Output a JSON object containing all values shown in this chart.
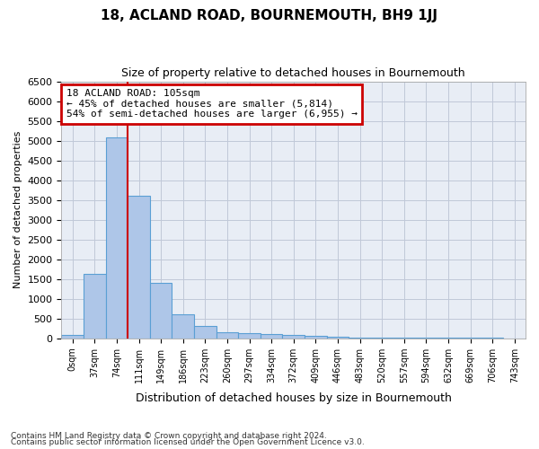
{
  "title": "18, ACLAND ROAD, BOURNEMOUTH, BH9 1JJ",
  "subtitle": "Size of property relative to detached houses in Bournemouth",
  "xlabel": "Distribution of detached houses by size in Bournemouth",
  "ylabel": "Number of detached properties",
  "bin_labels": [
    "0sqm",
    "37sqm",
    "74sqm",
    "111sqm",
    "149sqm",
    "186sqm",
    "223sqm",
    "260sqm",
    "297sqm",
    "334sqm",
    "372sqm",
    "409sqm",
    "446sqm",
    "483sqm",
    "520sqm",
    "557sqm",
    "594sqm",
    "632sqm",
    "669sqm",
    "706sqm",
    "743sqm"
  ],
  "bar_heights": [
    75,
    1625,
    5075,
    3600,
    1400,
    600,
    300,
    150,
    125,
    100,
    75,
    50,
    30,
    25,
    15,
    10,
    8,
    5,
    5,
    5,
    2
  ],
  "bar_color": "#aec6e8",
  "bar_edge_color": "#5a9fd4",
  "vline_position": 2.5,
  "vline_color": "#cc0000",
  "annotation_line1": "18 ACLAND ROAD: 105sqm",
  "annotation_line2": "← 45% of detached houses are smaller (5,814)",
  "annotation_line3": "54% of semi-detached houses are larger (6,955) →",
  "annotation_box_edgecolor": "#cc0000",
  "ylim_min": 0,
  "ylim_max": 6500,
  "yticks": [
    0,
    500,
    1000,
    1500,
    2000,
    2500,
    3000,
    3500,
    4000,
    4500,
    5000,
    5500,
    6000,
    6500
  ],
  "grid_color": "#c0c8d8",
  "bg_color": "#e8edf5",
  "footnote1": "Contains HM Land Registry data © Crown copyright and database right 2024.",
  "footnote2": "Contains public sector information licensed under the Open Government Licence v3.0."
}
